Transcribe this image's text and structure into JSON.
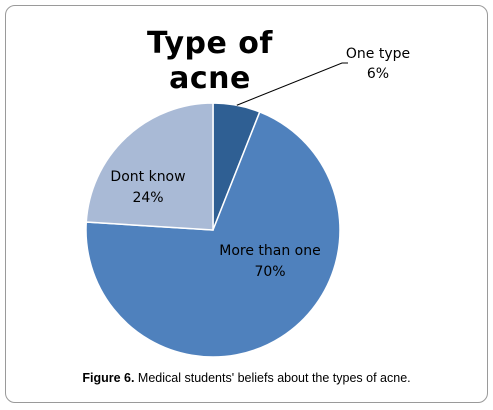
{
  "chart_data": {
    "type": "pie",
    "title": "Type of acne",
    "categories": [
      "One type",
      "More than one",
      "Dont know"
    ],
    "values": [
      6,
      70,
      24
    ],
    "labels": [
      "6%",
      "70%",
      "24%"
    ],
    "colors": [
      "#2f5f93",
      "#4f81bd",
      "#a9bad6"
    ]
  },
  "caption": {
    "label": "Figure 6.",
    "text": " Medical students' beliefs about the types of acne."
  }
}
